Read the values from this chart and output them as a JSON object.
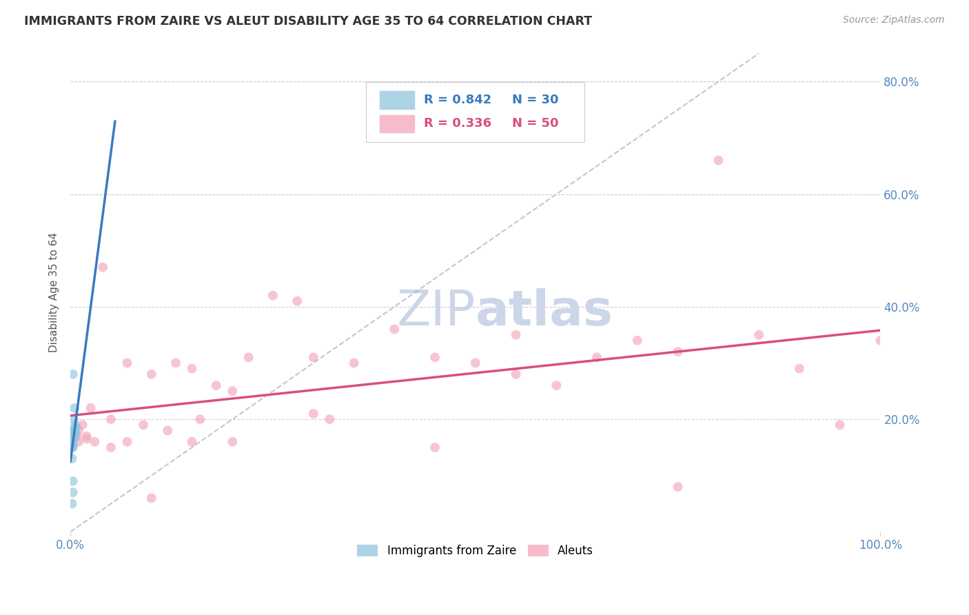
{
  "title": "IMMIGRANTS FROM ZAIRE VS ALEUT DISABILITY AGE 35 TO 64 CORRELATION CHART",
  "source": "Source: ZipAtlas.com",
  "ylabel": "Disability Age 35 to 64",
  "xlim": [
    0.0,
    1.0
  ],
  "ylim": [
    0.0,
    0.85
  ],
  "yticks": [
    0.2,
    0.4,
    0.6,
    0.8
  ],
  "ytick_labels": [
    "20.0%",
    "40.0%",
    "60.0%",
    "80.0%"
  ],
  "legend_blue_R": "R = 0.842",
  "legend_blue_N": "N = 30",
  "legend_pink_R": "R = 0.336",
  "legend_pink_N": "N = 50",
  "legend_label_blue": "Immigrants from Zaire",
  "legend_label_pink": "Aleuts",
  "blue_color": "#92c5de",
  "pink_color": "#f4a6ba",
  "blue_line_color": "#3a7abf",
  "pink_line_color": "#d94f7a",
  "dashed_line_color": "#b0b8cc",
  "title_color": "#333333",
  "axis_tick_color": "#5588bb",
  "background_color": "#ffffff",
  "watermark_color": "#ccd6e8",
  "blue_scatter_x": [
    0.002,
    0.003,
    0.004,
    0.002,
    0.003,
    0.003,
    0.002,
    0.003,
    0.004,
    0.003,
    0.004,
    0.005,
    0.005,
    0.006,
    0.006,
    0.007,
    0.002,
    0.003,
    0.004,
    0.003,
    0.003,
    0.002,
    0.006,
    0.005,
    0.003,
    0.002,
    0.003,
    0.003,
    0.002,
    0.003
  ],
  "blue_scatter_y": [
    0.175,
    0.17,
    0.165,
    0.16,
    0.155,
    0.17,
    0.16,
    0.18,
    0.17,
    0.165,
    0.2,
    0.18,
    0.17,
    0.19,
    0.175,
    0.185,
    0.16,
    0.155,
    0.175,
    0.17,
    0.165,
    0.15,
    0.185,
    0.22,
    0.28,
    0.05,
    0.07,
    0.09,
    0.13,
    0.15
  ],
  "pink_scatter_x": [
    0.003,
    0.008,
    0.01,
    0.015,
    0.02,
    0.025,
    0.04,
    0.05,
    0.07,
    0.09,
    0.1,
    0.12,
    0.13,
    0.15,
    0.16,
    0.18,
    0.2,
    0.22,
    0.25,
    0.28,
    0.3,
    0.32,
    0.35,
    0.4,
    0.45,
    0.5,
    0.55,
    0.6,
    0.65,
    0.7,
    0.75,
    0.8,
    0.85,
    0.9,
    0.95,
    1.0,
    0.003,
    0.006,
    0.01,
    0.02,
    0.03,
    0.05,
    0.07,
    0.1,
    0.15,
    0.2,
    0.3,
    0.45,
    0.55,
    0.75
  ],
  "pink_scatter_y": [
    0.175,
    0.17,
    0.18,
    0.19,
    0.165,
    0.22,
    0.47,
    0.2,
    0.3,
    0.19,
    0.28,
    0.18,
    0.3,
    0.29,
    0.2,
    0.26,
    0.25,
    0.31,
    0.42,
    0.41,
    0.31,
    0.2,
    0.3,
    0.36,
    0.31,
    0.3,
    0.35,
    0.26,
    0.31,
    0.34,
    0.32,
    0.66,
    0.35,
    0.29,
    0.19,
    0.34,
    0.16,
    0.17,
    0.16,
    0.17,
    0.16,
    0.15,
    0.16,
    0.06,
    0.16,
    0.16,
    0.21,
    0.15,
    0.28,
    0.08
  ],
  "marker_size": 100
}
